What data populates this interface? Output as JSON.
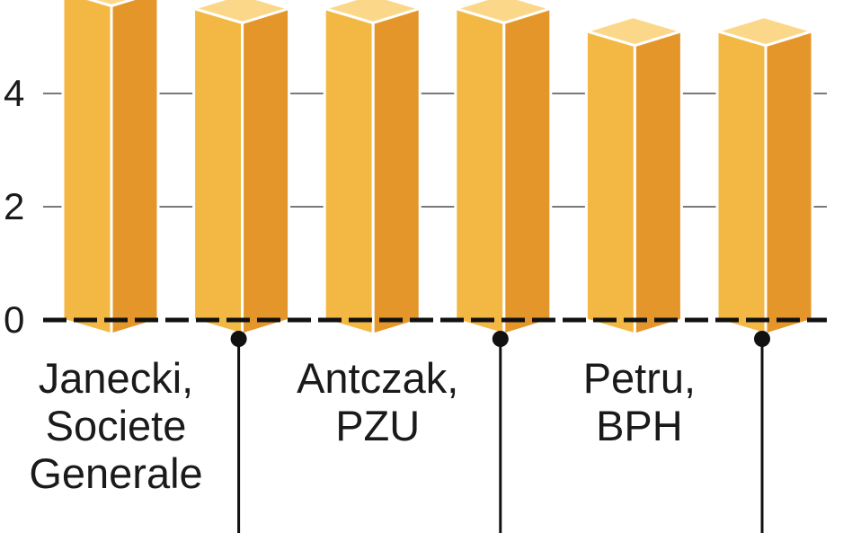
{
  "chart_data": {
    "type": "bar",
    "title": "",
    "xlabel": "",
    "ylabel": "",
    "ylim": [
      0,
      6
    ],
    "yticks": [
      0,
      2,
      4
    ],
    "grid": true,
    "categories": [
      "Janecki, Societe Generale",
      "",
      "Antczak, PZU",
      "",
      "Petru, BPH",
      ""
    ],
    "category_lines": [
      [
        "Janecki,",
        "Societe",
        "Generale"
      ],
      [],
      [
        "Antczak,",
        "PZU"
      ],
      [],
      [
        "Petru,",
        "BPH"
      ],
      []
    ],
    "values": [
      5.8,
      5.5,
      5.5,
      5.5,
      5.1,
      5.1
    ],
    "colors": {
      "bar_front": "#f3b843",
      "bar_side": "#e4962a",
      "bar_top": "#fbd889",
      "bar_edge": "#ffffff",
      "grid": "#7a7a7a",
      "baseline": "#111111",
      "leader": "#111111"
    }
  }
}
